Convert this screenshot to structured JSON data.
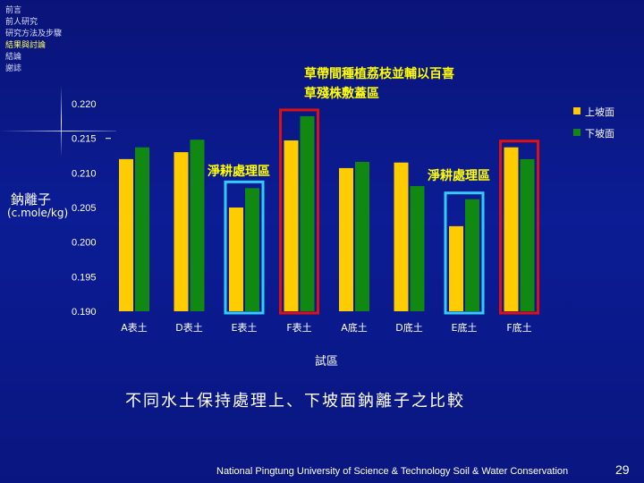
{
  "nav": {
    "items": [
      "前言",
      "前人研究",
      "研究方法及步驟",
      "結果與討論",
      "結論",
      "謝誌"
    ],
    "active_index": 3
  },
  "ylabel": {
    "line1": "鈉離子",
    "line2": "(c.mole/kg)"
  },
  "annotations": {
    "top": [
      "草帶間種植荔枝並輔以百喜",
      "草殘株敷蓋區"
    ],
    "left": "淨耕處理區",
    "right": "淨耕處理區"
  },
  "caption": "不同水土保持處理上、下坡面鈉離子之比較",
  "footer": "National Pingtung University of Science & Technology   Soil & Water Conservation",
  "page_number": "29",
  "colors": {
    "upper": "#ffcc00",
    "lower": "#118811",
    "cyan_box": "#33ccff",
    "red_box": "#dd1111"
  },
  "chart_data": {
    "type": "bar",
    "xlabel": "試區",
    "ylabel": "鈉離子 (c.mole/kg)",
    "ylim": [
      0.19,
      0.22
    ],
    "yticks": [
      "0.220",
      "0.215",
      "0.210",
      "0.205",
      "0.200",
      "0.195",
      "0.190"
    ],
    "categories": [
      "A表土",
      "D表土",
      "E表土",
      "F表土",
      "A底土",
      "D底土",
      "E底土",
      "F底土"
    ],
    "legend_position": "right",
    "series": [
      {
        "name": "上坡面",
        "values": [
          0.212,
          0.213,
          0.205,
          0.2147,
          0.2107,
          0.2115,
          0.2023,
          0.2137
        ]
      },
      {
        "name": "下坡面",
        "values": [
          0.2137,
          0.2148,
          0.2078,
          0.2182,
          0.2116,
          0.2081,
          0.2062,
          0.212
        ]
      }
    ],
    "highlights": [
      {
        "category_index": 2,
        "color": "cyan"
      },
      {
        "category_index": 3,
        "color": "red"
      },
      {
        "category_index": 6,
        "color": "cyan"
      },
      {
        "category_index": 7,
        "color": "red"
      }
    ]
  }
}
